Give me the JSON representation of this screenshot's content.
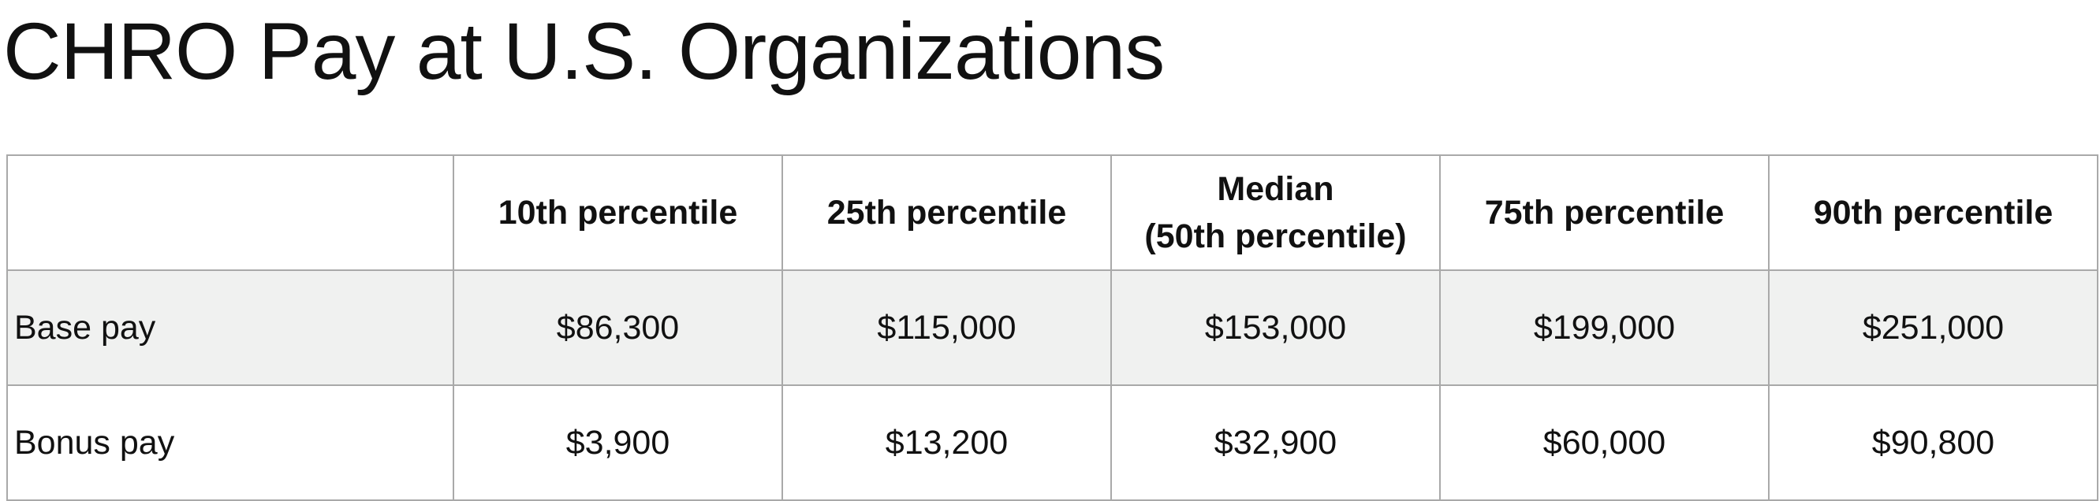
{
  "title": "CHRO Pay at U.S. Organizations",
  "chart_data": {
    "type": "table",
    "title": "CHRO Pay at U.S. Organizations",
    "columns": [
      "",
      "10th percentile",
      "25th percentile",
      "Median (50th percentile)",
      "75th percentile",
      "90th percentile"
    ],
    "header_lines": [
      [
        ""
      ],
      [
        "10th percentile"
      ],
      [
        "25th percentile"
      ],
      [
        "Median",
        "(50th percentile)"
      ],
      [
        "75th percentile"
      ],
      [
        "90th percentile"
      ]
    ],
    "rows": [
      {
        "label": "Base pay",
        "cells": [
          "$86,300",
          "$115,000",
          "$153,000",
          "$199,000",
          "$251,000"
        ],
        "values": [
          86300,
          115000,
          153000,
          199000,
          251000
        ]
      },
      {
        "label": "Bonus pay",
        "cells": [
          "$3,900",
          "$13,200",
          "$32,900",
          "$60,000",
          "$90,800"
        ],
        "values": [
          3900,
          13200,
          32900,
          60000,
          90800
        ]
      }
    ],
    "colors": {
      "border": "#a9a9a9",
      "shaded_row": "#f0f1f0",
      "text": "#111111"
    }
  }
}
